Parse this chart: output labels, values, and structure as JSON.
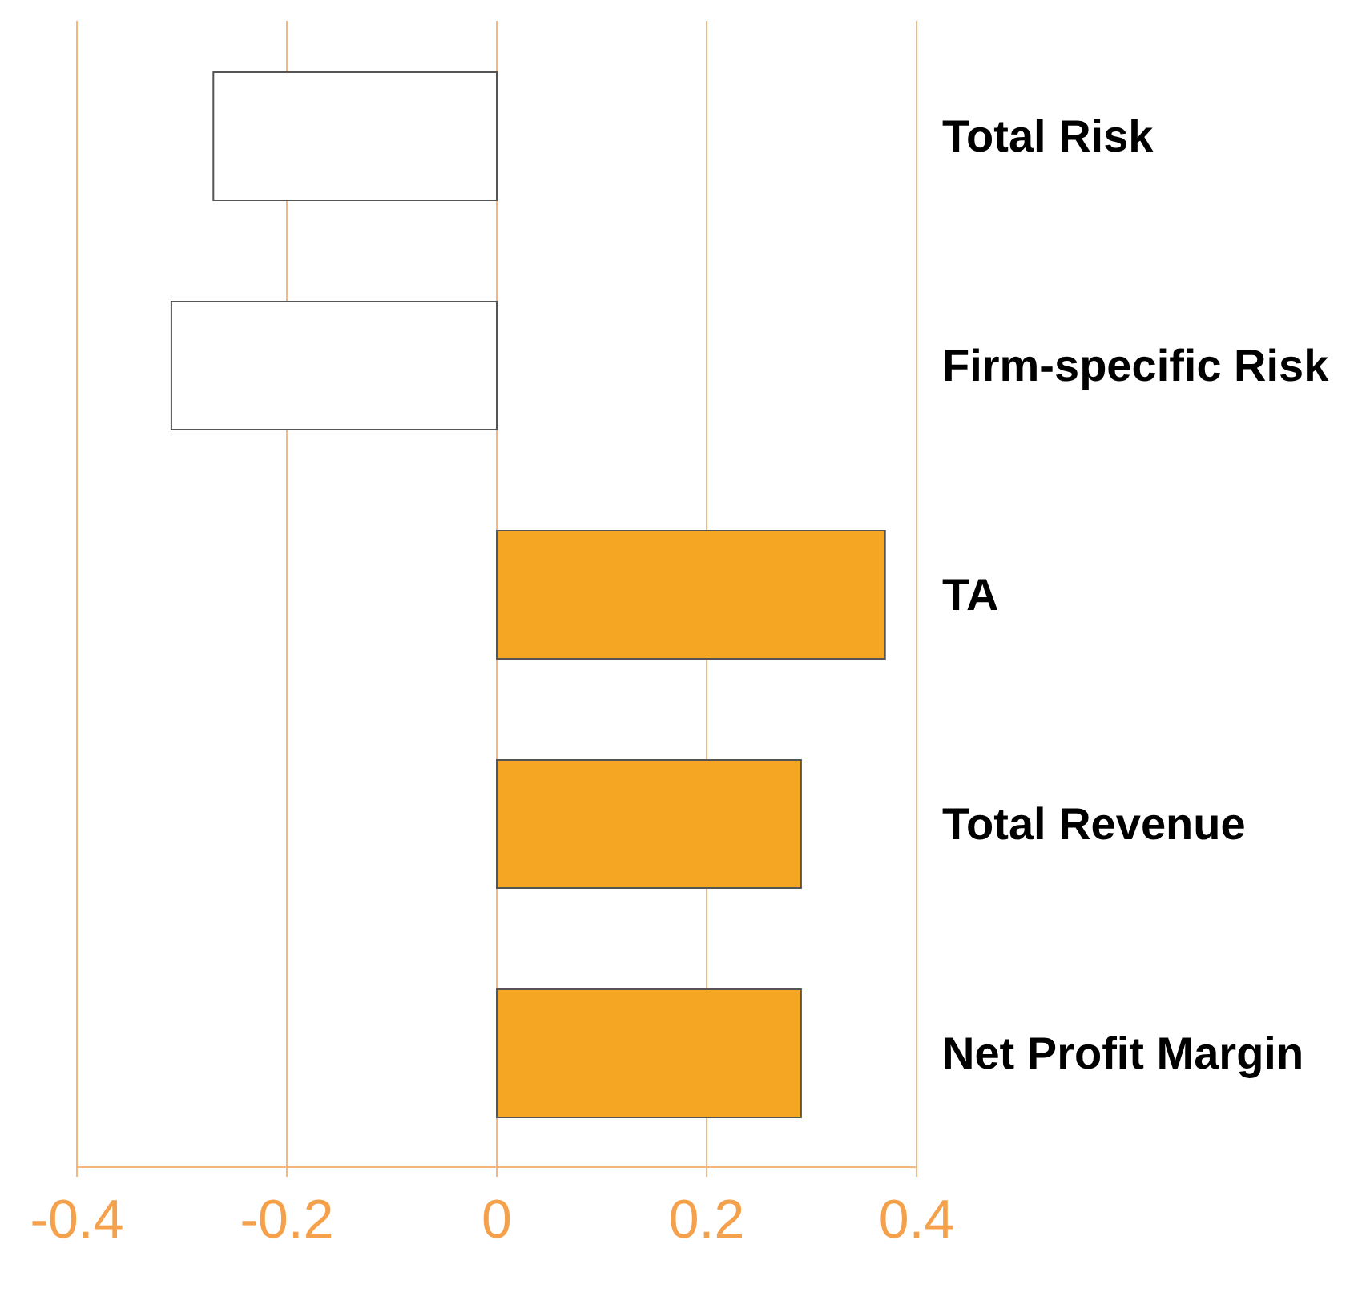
{
  "chart_data": {
    "type": "bar",
    "orientation": "horizontal",
    "categories": [
      "Total Risk",
      "Firm-specific Risk",
      "TA",
      "Total Revenue",
      "Net Profit Margin"
    ],
    "values": [
      -0.27,
      -0.31,
      0.37,
      0.29,
      0.29
    ],
    "colors": [
      "#ffffff",
      "#ffffff",
      "#f5a623",
      "#f5a623",
      "#f5a623"
    ],
    "xlim": [
      -0.4,
      0.4
    ],
    "xticks": [
      -0.4,
      -0.2,
      0,
      0.2,
      0.4
    ],
    "grid": "x"
  }
}
